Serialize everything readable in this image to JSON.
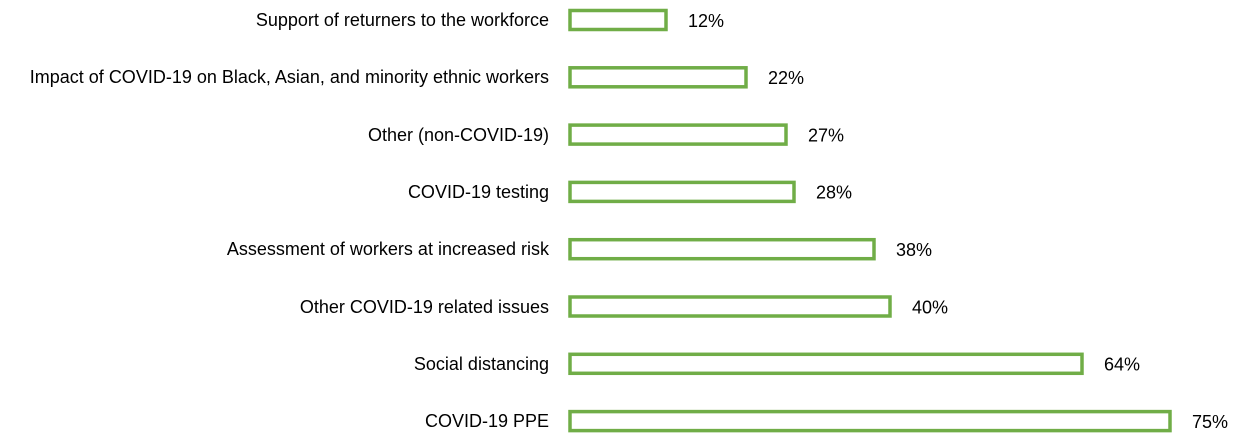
{
  "chart_data": {
    "type": "barh",
    "categories": [
      "Support of returners to the workforce",
      "Impact of COVID-19 on Black, Asian, and minority ethnic workers",
      "Other (non-COVID-19)",
      "COVID-19 testing",
      "Assessment of workers at increased risk",
      "Other COVID-19 related issues",
      "Social distancing",
      "COVID-19 PPE"
    ],
    "values": [
      12,
      22,
      27,
      28,
      38,
      40,
      64,
      75
    ],
    "value_labels": [
      "12%",
      "22%",
      "27%",
      "28%",
      "38%",
      "40%",
      "64%",
      "75%"
    ],
    "color": "#70ad47"
  }
}
